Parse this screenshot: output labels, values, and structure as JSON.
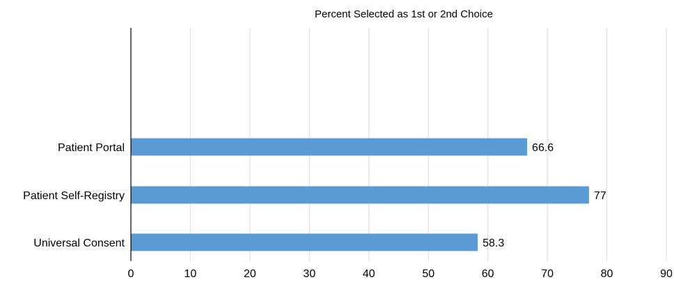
{
  "chart_data": {
    "type": "bar",
    "orientation": "horizontal",
    "title": "Percent Selected as 1st or 2nd Choice",
    "categories": [
      "Patient Portal",
      "Patient Self-Registry",
      "Universal Consent"
    ],
    "values": [
      66.6,
      77,
      58.3
    ],
    "data_labels": [
      "66.6",
      "77",
      "58.3"
    ],
    "xlim": [
      0,
      90
    ],
    "xticks": [
      "0",
      "10",
      "20",
      "30",
      "40",
      "50",
      "60",
      "70",
      "80",
      "90"
    ],
    "grid": "vertical",
    "bar_color": "#5b9bd5",
    "grid_color": "#d9d9d9",
    "axis_color": "#000000"
  }
}
